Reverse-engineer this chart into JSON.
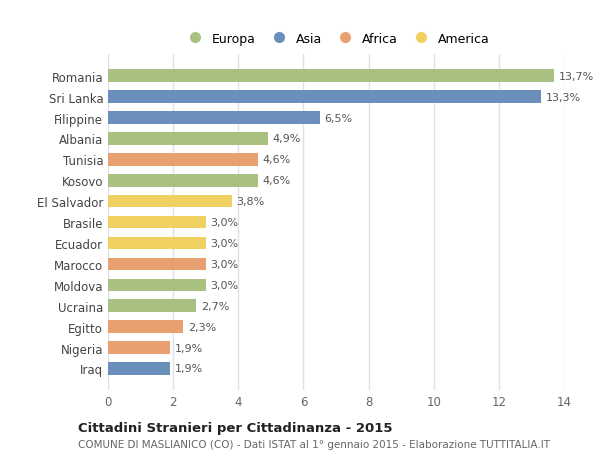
{
  "countries": [
    "Romania",
    "Sri Lanka",
    "Filippine",
    "Albania",
    "Tunisia",
    "Kosovo",
    "El Salvador",
    "Brasile",
    "Ecuador",
    "Marocco",
    "Moldova",
    "Ucraina",
    "Egitto",
    "Nigeria",
    "Iraq"
  ],
  "values": [
    13.7,
    13.3,
    6.5,
    4.9,
    4.6,
    4.6,
    3.8,
    3.0,
    3.0,
    3.0,
    3.0,
    2.7,
    2.3,
    1.9,
    1.9
  ],
  "labels": [
    "13,7%",
    "13,3%",
    "6,5%",
    "4,9%",
    "4,6%",
    "4,6%",
    "3,8%",
    "3,0%",
    "3,0%",
    "3,0%",
    "3,0%",
    "2,7%",
    "2,3%",
    "1,9%",
    "1,9%"
  ],
  "colors": [
    "#a8c080",
    "#6b8fbb",
    "#6b8fbb",
    "#a8c080",
    "#e8a070",
    "#a8c080",
    "#f0d060",
    "#f0d060",
    "#f0d060",
    "#e8a070",
    "#a8c080",
    "#a8c080",
    "#e8a070",
    "#e8a070",
    "#6b8fbb"
  ],
  "legend": {
    "Europa": "#a8c080",
    "Asia": "#6b8fbb",
    "Africa": "#e8a070",
    "America": "#f0d060"
  },
  "xlim": [
    0,
    14
  ],
  "xticks": [
    0,
    2,
    4,
    6,
    8,
    10,
    12,
    14
  ],
  "title": "Cittadini Stranieri per Cittadinanza - 2015",
  "subtitle": "COMUNE DI MASLIANICO (CO) - Dati ISTAT al 1° gennaio 2015 - Elaborazione TUTTITALIA.IT",
  "background_color": "#ffffff",
  "grid_color": "#e0e0e8",
  "bar_height": 0.6
}
